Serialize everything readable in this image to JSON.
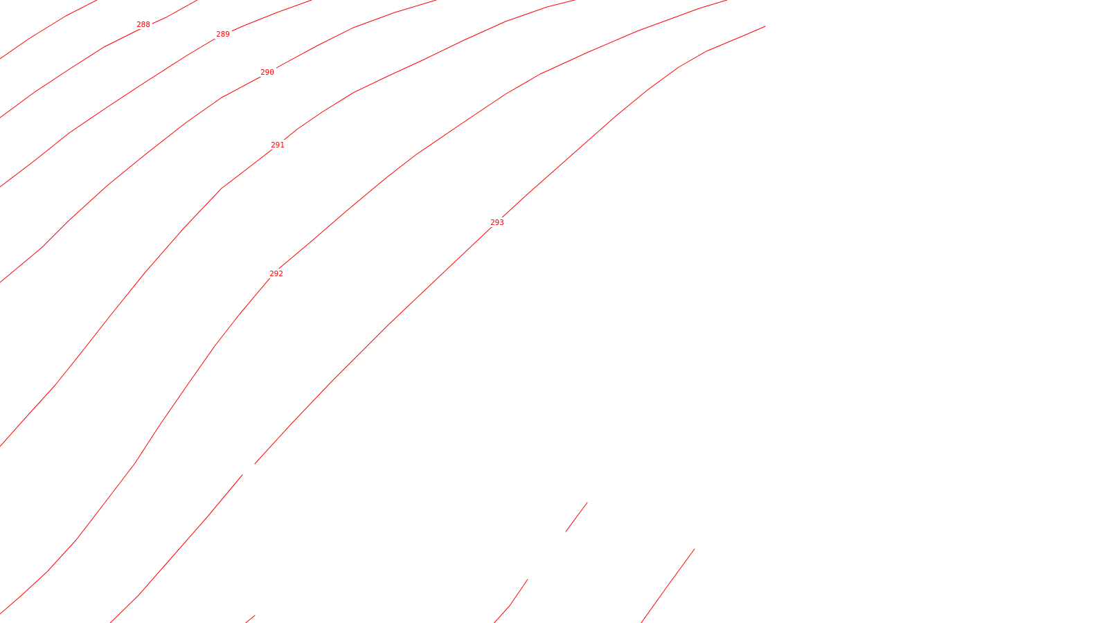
{
  "map": {
    "line_color": "#ff0000",
    "background_color": "#ffffff",
    "contour_labels": [
      {
        "id": "288",
        "text": "288"
      },
      {
        "id": "289",
        "text": "289"
      },
      {
        "id": "290",
        "text": "290"
      },
      {
        "id": "291",
        "text": "291"
      },
      {
        "id": "292",
        "text": "292"
      },
      {
        "id": "293",
        "text": "293"
      }
    ]
  }
}
